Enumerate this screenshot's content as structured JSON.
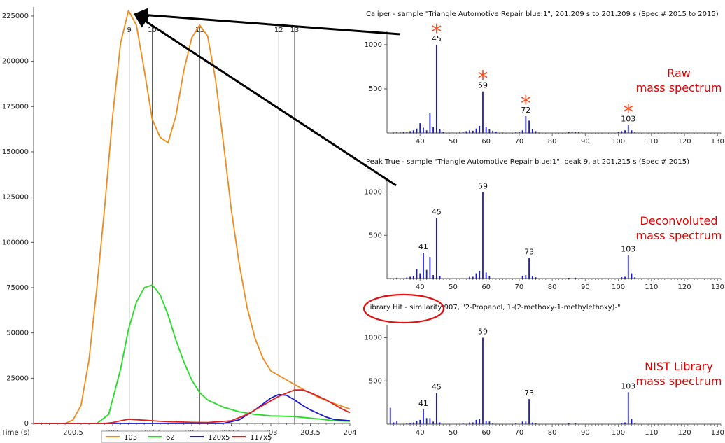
{
  "chromatogram": {
    "type": "line",
    "x_axis_label": "Time (s)",
    "xlim": [
      200.0,
      204.0
    ],
    "ylim": [
      0,
      230000
    ],
    "x_ticks": [
      "200.5",
      "201",
      "201.5",
      "202",
      "202.5",
      "203",
      "203.5",
      "204"
    ],
    "x_tick_values": [
      200.5,
      201,
      201.5,
      202,
      202.5,
      203,
      203.5,
      204
    ],
    "y_ticks": [
      "0",
      "25000",
      "50000",
      "75000",
      "100000",
      "125000",
      "150000",
      "175000",
      "200000",
      "225000"
    ],
    "y_tick_values": [
      0,
      25000,
      50000,
      75000,
      100000,
      125000,
      150000,
      175000,
      200000,
      225000
    ],
    "peak_markers": [
      {
        "label": "9",
        "x": 201.21
      },
      {
        "label": "10",
        "x": 201.5
      },
      {
        "label": "11",
        "x": 202.1
      },
      {
        "label": "12",
        "x": 203.1
      },
      {
        "label": "13",
        "x": 203.3
      }
    ],
    "series": [
      {
        "name": "103",
        "color": "#ef8a1c",
        "points": [
          [
            200.0,
            0
          ],
          [
            200.4,
            0
          ],
          [
            200.5,
            2000
          ],
          [
            200.6,
            10000
          ],
          [
            200.7,
            35000
          ],
          [
            200.8,
            75000
          ],
          [
            200.9,
            120000
          ],
          [
            201.0,
            170000
          ],
          [
            201.1,
            210000
          ],
          [
            201.2,
            228000
          ],
          [
            201.3,
            220000
          ],
          [
            201.4,
            195000
          ],
          [
            201.5,
            168000
          ],
          [
            201.6,
            158000
          ],
          [
            201.7,
            155000
          ],
          [
            201.8,
            170000
          ],
          [
            201.9,
            195000
          ],
          [
            202.0,
            213000
          ],
          [
            202.1,
            220000
          ],
          [
            202.2,
            214000
          ],
          [
            202.3,
            190000
          ],
          [
            202.4,
            155000
          ],
          [
            202.5,
            118000
          ],
          [
            202.6,
            88000
          ],
          [
            202.7,
            64000
          ],
          [
            202.8,
            47000
          ],
          [
            202.9,
            36000
          ],
          [
            203.0,
            29000
          ],
          [
            203.2,
            24000
          ],
          [
            203.4,
            19000
          ],
          [
            203.6,
            14500
          ],
          [
            203.8,
            11000
          ],
          [
            204.0,
            8000
          ]
        ]
      },
      {
        "name": "62",
        "color": "#22dd22",
        "points": [
          [
            200.0,
            0
          ],
          [
            200.8,
            0
          ],
          [
            200.95,
            5000
          ],
          [
            201.1,
            30000
          ],
          [
            201.2,
            52000
          ],
          [
            201.3,
            67000
          ],
          [
            201.4,
            75000
          ],
          [
            201.5,
            76500
          ],
          [
            201.6,
            71000
          ],
          [
            201.7,
            60000
          ],
          [
            201.8,
            46000
          ],
          [
            201.9,
            34000
          ],
          [
            202.0,
            24000
          ],
          [
            202.1,
            17000
          ],
          [
            202.2,
            13000
          ],
          [
            202.4,
            9000
          ],
          [
            202.6,
            6500
          ],
          [
            202.8,
            5000
          ],
          [
            203.0,
            4200
          ],
          [
            203.3,
            3800
          ],
          [
            203.6,
            2500
          ],
          [
            203.8,
            1500
          ],
          [
            204.0,
            1200
          ]
        ]
      },
      {
        "name": "120x5",
        "color": "#1a1acc",
        "points": [
          [
            200.0,
            0
          ],
          [
            202.4,
            0
          ],
          [
            202.6,
            2000
          ],
          [
            202.8,
            7500
          ],
          [
            203.0,
            14000
          ],
          [
            203.1,
            16000
          ],
          [
            203.2,
            15500
          ],
          [
            203.3,
            13000
          ],
          [
            203.4,
            10000
          ],
          [
            203.5,
            7500
          ],
          [
            203.6,
            5500
          ],
          [
            203.7,
            3500
          ],
          [
            203.8,
            2200
          ],
          [
            204.0,
            1500
          ]
        ]
      },
      {
        "name": "117x5",
        "color": "#e21e1e",
        "points": [
          [
            200.0,
            0
          ],
          [
            200.9,
            0
          ],
          [
            201.0,
            500
          ],
          [
            201.1,
            1500
          ],
          [
            201.2,
            2300
          ],
          [
            201.4,
            1800
          ],
          [
            201.6,
            1200
          ],
          [
            201.8,
            900
          ],
          [
            202.0,
            600
          ],
          [
            202.2,
            500
          ],
          [
            202.5,
            1500
          ],
          [
            202.7,
            5000
          ],
          [
            202.9,
            10000
          ],
          [
            203.1,
            15000
          ],
          [
            203.3,
            18500
          ],
          [
            203.4,
            18500
          ],
          [
            203.5,
            17000
          ],
          [
            203.7,
            13000
          ],
          [
            203.9,
            8000
          ],
          [
            204.0,
            6000
          ]
        ]
      }
    ]
  },
  "spectra_x_ticks": [
    "40",
    "50",
    "60",
    "70",
    "80",
    "90",
    "100",
    "110",
    "120",
    "130"
  ],
  "spectra_x_tick_values": [
    40,
    50,
    60,
    70,
    80,
    90,
    100,
    110,
    120,
    130
  ],
  "spectra_xlim": [
    30,
    131
  ],
  "spectra_ylim": [
    0,
    1150
  ],
  "spectra_y_ticks": [
    "500",
    "1000"
  ],
  "spectra_y_tick_values": [
    500,
    1000
  ],
  "spectra": [
    {
      "title": "Caliper - sample \"Triangle Automotive Repair blue:1\",  201.209 s to 201.209 s (Spec # 2015 to 2015)",
      "caption_line1": "Raw",
      "caption_line2": "mass spectrum",
      "peaks": [
        [
          32,
          5
        ],
        [
          33,
          8
        ],
        [
          34,
          6
        ],
        [
          35,
          10
        ],
        [
          36,
          8
        ],
        [
          37,
          20
        ],
        [
          38,
          30
        ],
        [
          39,
          50
        ],
        [
          40,
          110
        ],
        [
          41,
          60
        ],
        [
          42,
          30
        ],
        [
          43,
          230
        ],
        [
          44,
          70
        ],
        [
          45,
          1000
        ],
        [
          46,
          40
        ],
        [
          47,
          15
        ],
        [
          50,
          5
        ],
        [
          52,
          6
        ],
        [
          53,
          15
        ],
        [
          54,
          20
        ],
        [
          55,
          30
        ],
        [
          56,
          25
        ],
        [
          57,
          50
        ],
        [
          58,
          80
        ],
        [
          59,
          470
        ],
        [
          60,
          70
        ],
        [
          61,
          40
        ],
        [
          62,
          25
        ],
        [
          63,
          15
        ],
        [
          65,
          5
        ],
        [
          69,
          10
        ],
        [
          70,
          15
        ],
        [
          71,
          30
        ],
        [
          72,
          190
        ],
        [
          73,
          140
        ],
        [
          74,
          40
        ],
        [
          75,
          20
        ],
        [
          76,
          5
        ],
        [
          85,
          8
        ],
        [
          86,
          10
        ],
        [
          87,
          10
        ],
        [
          88,
          8
        ],
        [
          89,
          5
        ],
        [
          100,
          10
        ],
        [
          101,
          20
        ],
        [
          102,
          30
        ],
        [
          103,
          90
        ],
        [
          104,
          30
        ],
        [
          105,
          8
        ],
        [
          115,
          5
        ],
        [
          117,
          5
        ]
      ],
      "labeled": [
        {
          "label": "45",
          "mz": 45
        },
        {
          "label": "59",
          "mz": 59
        },
        {
          "label": "72",
          "mz": 72
        },
        {
          "label": "103",
          "mz": 103
        }
      ],
      "stars": [
        45,
        59,
        72,
        103
      ]
    },
    {
      "title": "Peak True - sample \"Triangle Automotive Repair blue:1\", peak 9, at 201.215 s (Spec # 2015)",
      "caption_line1": "Deconvoluted",
      "caption_line2": "mass spectrum",
      "peaks": [
        [
          31,
          5
        ],
        [
          33,
          10
        ],
        [
          36,
          12
        ],
        [
          37,
          20
        ],
        [
          38,
          30
        ],
        [
          39,
          110
        ],
        [
          40,
          60
        ],
        [
          41,
          300
        ],
        [
          42,
          100
        ],
        [
          43,
          250
        ],
        [
          44,
          40
        ],
        [
          45,
          700
        ],
        [
          46,
          30
        ],
        [
          55,
          20
        ],
        [
          56,
          20
        ],
        [
          57,
          60
        ],
        [
          58,
          90
        ],
        [
          59,
          1000
        ],
        [
          60,
          70
        ],
        [
          61,
          30
        ],
        [
          71,
          30
        ],
        [
          72,
          40
        ],
        [
          73,
          240
        ],
        [
          74,
          30
        ],
        [
          75,
          15
        ],
        [
          85,
          8
        ],
        [
          87,
          10
        ],
        [
          89,
          6
        ],
        [
          101,
          15
        ],
        [
          102,
          20
        ],
        [
          103,
          270
        ],
        [
          104,
          60
        ],
        [
          105,
          15
        ]
      ],
      "labeled": [
        {
          "label": "41",
          "mz": 41
        },
        {
          "label": "45",
          "mz": 45
        },
        {
          "label": "59",
          "mz": 59
        },
        {
          "label": "73",
          "mz": 73
        },
        {
          "label": "103",
          "mz": 103
        }
      ],
      "stars": []
    },
    {
      "title": "Library Hit - similarity 907, \"2-Propanol, 1-(2-methoxy-1-methylethoxy)-\"",
      "caption_line1": "NIST Library",
      "caption_line2": "mass spectrum",
      "peaks": [
        [
          31,
          190
        ],
        [
          32,
          20
        ],
        [
          33,
          40
        ],
        [
          36,
          10
        ],
        [
          37,
          15
        ],
        [
          38,
          20
        ],
        [
          39,
          40
        ],
        [
          40,
          50
        ],
        [
          41,
          170
        ],
        [
          42,
          70
        ],
        [
          43,
          70
        ],
        [
          44,
          30
        ],
        [
          45,
          360
        ],
        [
          46,
          20
        ],
        [
          53,
          10
        ],
        [
          55,
          20
        ],
        [
          56,
          20
        ],
        [
          57,
          50
        ],
        [
          58,
          60
        ],
        [
          59,
          1000
        ],
        [
          60,
          40
        ],
        [
          61,
          30
        ],
        [
          62,
          10
        ],
        [
          69,
          10
        ],
        [
          71,
          30
        ],
        [
          72,
          30
        ],
        [
          73,
          290
        ],
        [
          74,
          20
        ],
        [
          75,
          10
        ],
        [
          85,
          10
        ],
        [
          87,
          10
        ],
        [
          101,
          15
        ],
        [
          102,
          20
        ],
        [
          103,
          370
        ],
        [
          104,
          60
        ],
        [
          105,
          10
        ]
      ],
      "labeled": [
        {
          "label": "41",
          "mz": 41
        },
        {
          "label": "45",
          "mz": 45
        },
        {
          "label": "59",
          "mz": 59
        },
        {
          "label": "73",
          "mz": 73
        },
        {
          "label": "103",
          "mz": 103
        }
      ],
      "stars": []
    }
  ],
  "colors": {
    "highlight_ellipse": "#e01010",
    "arrow": "#000000",
    "spectrum_bars": "#1a1acc",
    "caption": "#e00000",
    "star": "#ff4a1c"
  }
}
